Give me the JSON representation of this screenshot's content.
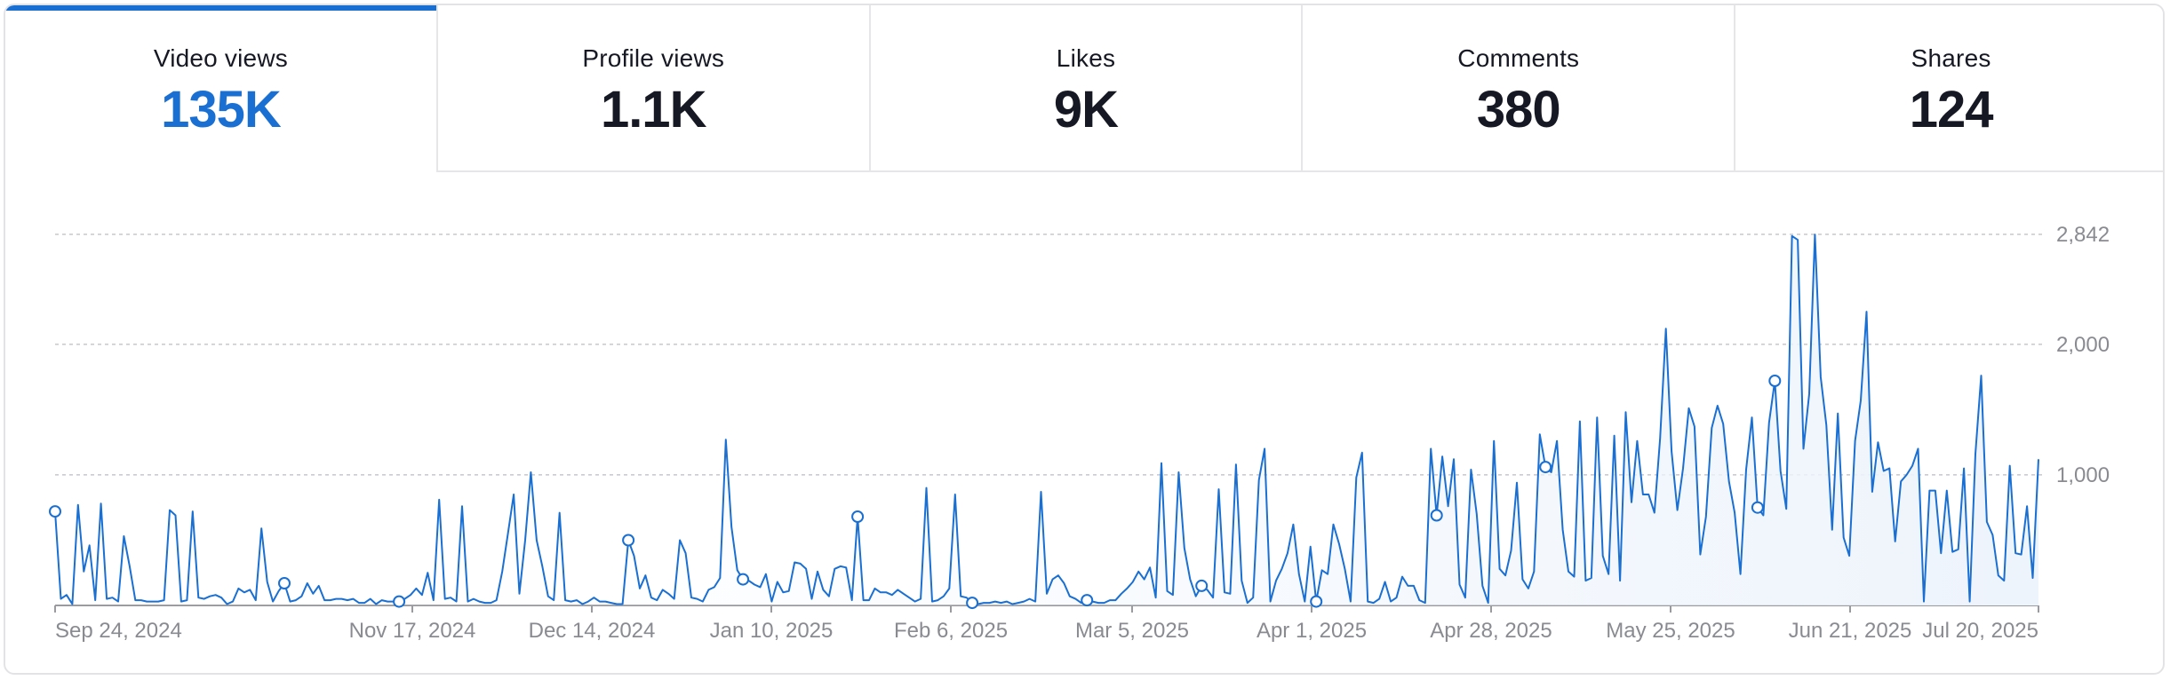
{
  "tabs": [
    {
      "label": "Video views",
      "value": "135K",
      "active": true
    },
    {
      "label": "Profile views",
      "value": "1.1K",
      "active": false
    },
    {
      "label": "Likes",
      "value": "9K",
      "active": false
    },
    {
      "label": "Comments",
      "value": "380",
      "active": false
    },
    {
      "label": "Shares",
      "value": "124",
      "active": false
    }
  ],
  "colors": {
    "accent": "#1a6fd2",
    "area": "#eef4fc",
    "grid": "#c8c8cc"
  },
  "chart_data": {
    "type": "area",
    "series": [
      {
        "values": [
          720,
          50,
          80,
          10,
          770,
          260,
          460,
          40,
          780,
          50,
          60,
          30,
          530,
          300,
          40,
          40,
          30,
          30,
          30,
          40,
          730,
          690,
          30,
          40,
          720,
          60,
          50,
          70,
          80,
          60,
          10,
          30,
          130,
          100,
          120,
          40,
          590,
          180,
          30,
          110,
          170,
          30,
          40,
          70,
          170,
          90,
          150,
          40,
          40,
          50,
          50,
          40,
          50,
          20,
          20,
          50,
          10,
          40,
          30,
          30,
          30,
          50,
          80,
          130,
          80,
          250,
          40,
          810,
          50,
          60,
          30,
          760,
          30,
          50,
          30,
          20,
          20,
          40,
          260,
          550,
          850,
          90,
          500,
          1020,
          500,
          300,
          70,
          40,
          710,
          40,
          30,
          40,
          10,
          30,
          60,
          30,
          30,
          20,
          10,
          10,
          500,
          380,
          130,
          230,
          60,
          40,
          120,
          90,
          50,
          500,
          400,
          60,
          50,
          30,
          120,
          140,
          210,
          1270,
          600,
          270,
          200,
          190,
          160,
          140,
          240,
          30,
          180,
          100,
          110,
          330,
          320,
          280,
          50,
          260,
          120,
          70,
          280,
          300,
          290,
          40,
          680,
          40,
          40,
          130,
          100,
          100,
          80,
          120,
          90,
          60,
          30,
          50,
          900,
          30,
          40,
          70,
          130,
          850,
          70,
          60,
          20,
          10,
          20,
          20,
          30,
          20,
          30,
          10,
          20,
          30,
          50,
          30,
          870,
          90,
          200,
          230,
          170,
          70,
          50,
          20,
          40,
          30,
          20,
          20,
          40,
          40,
          90,
          130,
          180,
          260,
          200,
          290,
          60,
          1090,
          110,
          80,
          1020,
          440,
          200,
          70,
          150,
          120,
          60,
          890,
          100,
          90,
          1080,
          190,
          20,
          60,
          960,
          1200,
          30,
          190,
          280,
          400,
          620,
          240,
          30,
          450,
          30,
          270,
          240,
          620,
          470,
          280,
          30,
          980,
          1170,
          30,
          20,
          50,
          180,
          30,
          60,
          220,
          150,
          150,
          40,
          20,
          1200,
          690,
          1140,
          760,
          1120,
          160,
          60,
          1040,
          700,
          150,
          20,
          1260,
          280,
          230,
          420,
          940,
          200,
          130,
          260,
          1310,
          1060,
          1020,
          1260,
          580,
          260,
          220,
          1410,
          190,
          210,
          1440,
          380,
          240,
          1300,
          190,
          1480,
          790,
          1260,
          850,
          850,
          710,
          1280,
          2120,
          1180,
          730,
          1050,
          1510,
          1370,
          390,
          680,
          1360,
          1530,
          1390,
          950,
          710,
          240,
          1040,
          1440,
          750,
          690,
          1400,
          1720,
          1030,
          740,
          2830,
          2800,
          1200,
          1620,
          2840,
          1750,
          1380,
          580,
          1470,
          520,
          380,
          1260,
          1570,
          2250,
          870,
          1250,
          1030,
          1050,
          490,
          950,
          1000,
          1070,
          1200,
          30,
          880,
          880,
          400,
          880,
          410,
          430,
          1050,
          30,
          1160,
          1760,
          640,
          540,
          230,
          190,
          1070,
          400,
          390,
          760,
          210,
          1120
        ]
      }
    ],
    "x_ticks": [
      "Sep 24, 2024",
      "Nov 17, 2024",
      "Dec 14, 2024",
      "Jan 10, 2025",
      "Feb 6, 2025",
      "Mar 5, 2025",
      "Apr 1, 2025",
      "Apr 28, 2025",
      "May 25, 2025",
      "Jun 21, 2025",
      "Jul 20, 2025"
    ],
    "y_ticks": [
      "2,842",
      "2,000",
      "1,000"
    ],
    "ylim": [
      0,
      2842
    ],
    "grid": true
  }
}
